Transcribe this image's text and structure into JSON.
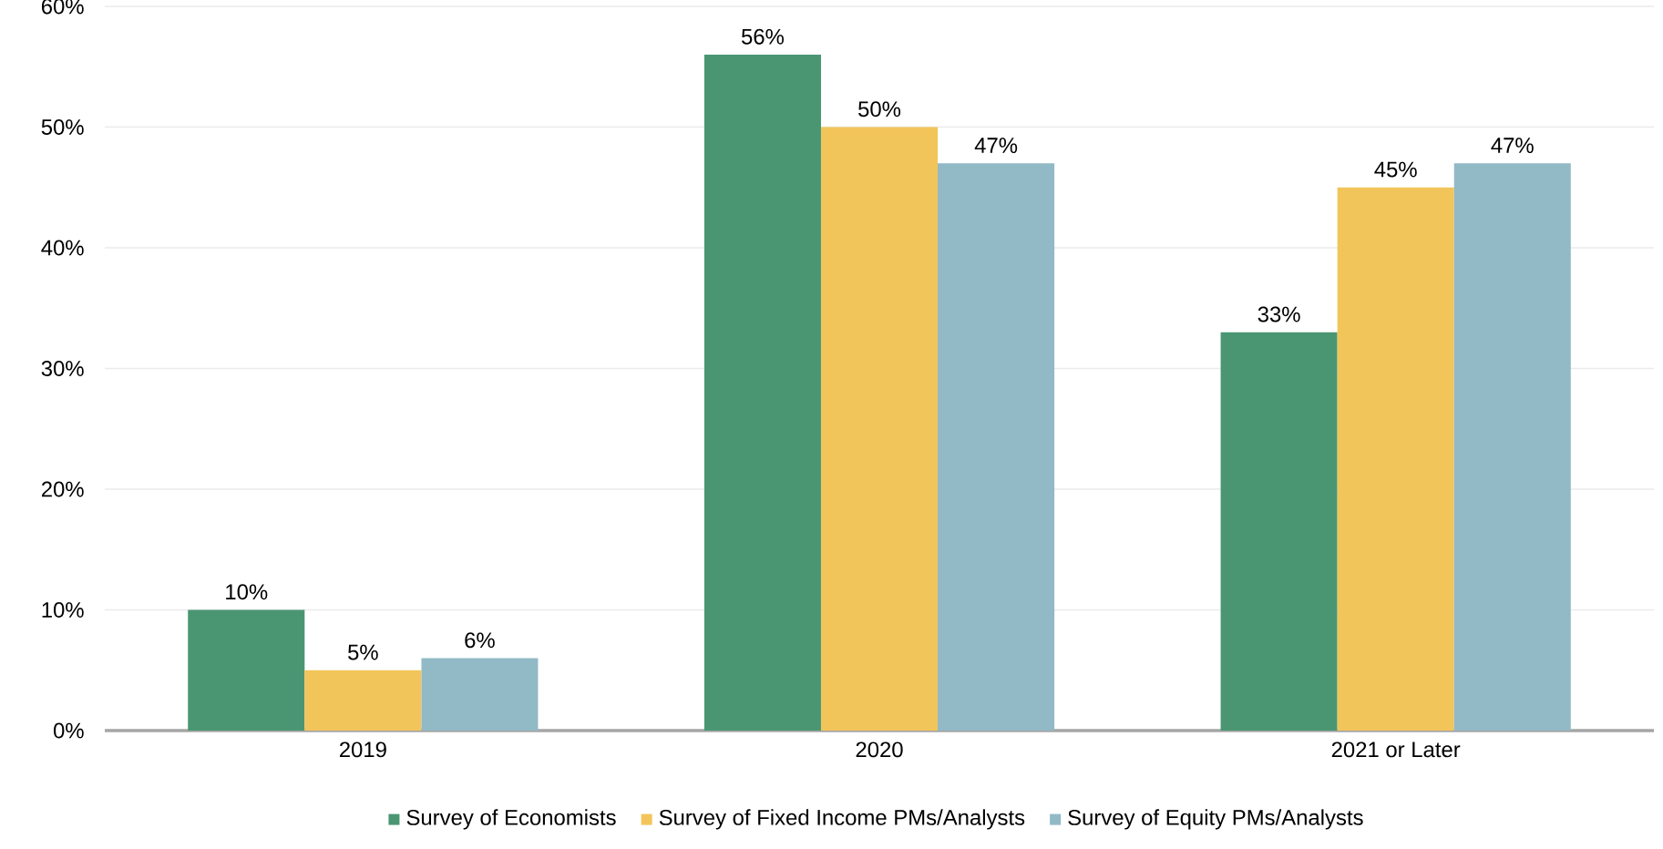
{
  "chart_data": {
    "type": "bar",
    "categories": [
      "2019",
      "2020",
      "2021 or Later"
    ],
    "series": [
      {
        "name": "Survey of Economists",
        "color": "#4a9673",
        "values": [
          10,
          56,
          33
        ],
        "value_labels": [
          "10%",
          "56%",
          "33%"
        ]
      },
      {
        "name": "Survey of Fixed Income PMs/Analysts",
        "color": "#f2c55a",
        "values": [
          5,
          50,
          45
        ],
        "value_labels": [
          "5%",
          "50%",
          "45%"
        ]
      },
      {
        "name": "Survey of Equity PMs/Analysts",
        "color": "#92b9c6",
        "values": [
          6,
          47,
          47
        ],
        "value_labels": [
          "6%",
          "47%",
          "47%"
        ]
      }
    ],
    "ylim": [
      0,
      60
    ],
    "yticks": [
      {
        "value": 0,
        "label": "0%"
      },
      {
        "value": 10,
        "label": "10%"
      },
      {
        "value": 20,
        "label": "20%"
      },
      {
        "value": 30,
        "label": "30%"
      },
      {
        "value": 40,
        "label": "40%"
      },
      {
        "value": 50,
        "label": "50%"
      },
      {
        "value": 60,
        "label": "60%"
      }
    ],
    "grid": "y",
    "legend": "bottom"
  }
}
